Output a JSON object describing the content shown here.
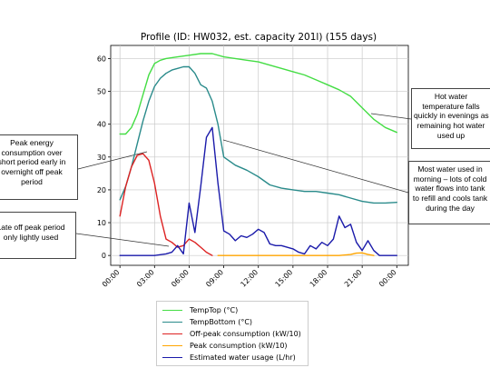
{
  "chart_data": {
    "type": "line",
    "title": "Profile (ID: HW032, est. capacity 201l) (155 days)",
    "xlabel": "",
    "ylabel": "",
    "x_ticks": [
      "00:00",
      "03:00",
      "06:00",
      "09:00",
      "12:00",
      "15:00",
      "18:00",
      "21:00",
      "00:00"
    ],
    "x_tick_hours": [
      0,
      3,
      6,
      9,
      12,
      15,
      18,
      21,
      24
    ],
    "xlim": [
      -0.8,
      25.0
    ],
    "y_ticks": [
      0,
      10,
      20,
      30,
      40,
      50,
      60
    ],
    "ylim": [
      -3,
      64
    ],
    "grid": true,
    "legend_position": "below",
    "series": [
      {
        "name": "TempTop (°C)",
        "color": "#44dd44",
        "x": [
          0,
          0.5,
          1,
          1.5,
          2,
          2.5,
          3,
          3.5,
          4,
          5,
          6,
          7,
          8,
          9,
          10,
          11,
          12,
          13,
          14,
          15,
          16,
          17,
          18,
          19,
          20,
          21,
          22,
          23,
          24
        ],
        "y": [
          37,
          37,
          39,
          43,
          49,
          55,
          58.5,
          59.5,
          60,
          60.5,
          61,
          61.5,
          61.5,
          60.5,
          60,
          59.5,
          59,
          58,
          57,
          56,
          55,
          53.5,
          52,
          50.5,
          48.5,
          45,
          41.5,
          39,
          37.5
        ]
      },
      {
        "name": "TempBottom (°C)",
        "color": "#2a8b8b",
        "x": [
          0,
          0.5,
          1,
          1.5,
          2,
          2.5,
          3,
          3.5,
          4,
          4.5,
          5,
          5.5,
          6,
          6.5,
          7,
          7.5,
          8,
          8.5,
          9,
          10,
          11,
          12,
          13,
          14,
          15,
          16,
          17,
          18,
          19,
          20,
          21,
          22,
          23,
          24
        ],
        "y": [
          17,
          21,
          27,
          34,
          41,
          47,
          51.5,
          54,
          55.5,
          56.5,
          57,
          57.5,
          57.5,
          55.5,
          52,
          51,
          47,
          40,
          30,
          27.5,
          26,
          24,
          21.5,
          20.5,
          20,
          19.5,
          19.5,
          19,
          18.5,
          17.5,
          16.5,
          16,
          16,
          16.2
        ]
      },
      {
        "name": "Off-peak consumption (kW/10)",
        "color": "#dd2222",
        "x": [
          0,
          0.5,
          1,
          1.5,
          2,
          2.5,
          3,
          3.5,
          4,
          4.5,
          5,
          5.5,
          6,
          6.5,
          7,
          7.5,
          8
        ],
        "y": [
          12,
          21,
          27,
          30.5,
          31,
          29,
          22,
          12,
          5,
          4,
          2.5,
          3,
          5,
          4,
          2.5,
          1,
          0
        ]
      },
      {
        "name": "Peak consumption (kW/10)",
        "color": "#ffa500",
        "x": [
          8.5,
          9,
          10,
          11,
          12,
          13,
          14,
          15,
          16,
          17,
          18,
          19,
          20,
          20.5,
          21,
          21.5,
          22
        ],
        "y": [
          0,
          0,
          0,
          0,
          0,
          0,
          0,
          0,
          0,
          0,
          0,
          0,
          0.3,
          0.7,
          0.8,
          0.3,
          0
        ]
      },
      {
        "name": "Estimated water usage (L/hr)",
        "color": "#1a1aaa",
        "x": [
          0,
          1,
          2,
          3,
          4,
          4.5,
          5,
          5.5,
          6,
          6.5,
          7,
          7.5,
          8,
          8.5,
          9,
          9.5,
          10,
          10.5,
          11,
          11.5,
          12,
          12.5,
          13,
          13.5,
          14,
          15,
          15.5,
          16,
          16.5,
          17,
          17.5,
          18,
          18.5,
          19,
          19.5,
          20,
          20.5,
          21,
          21.5,
          22,
          22.5,
          23,
          23.5,
          24
        ],
        "y": [
          0,
          0,
          0,
          0,
          0.5,
          1,
          3,
          0.5,
          16,
          7,
          21,
          36,
          39,
          22,
          7.5,
          6.5,
          4.5,
          6,
          5.5,
          6.5,
          8,
          7,
          3.5,
          3,
          3,
          2,
          1,
          0.5,
          3,
          2,
          4,
          3,
          5,
          12,
          8.5,
          9.5,
          4,
          1.5,
          4.5,
          1.5,
          0,
          0,
          0,
          0
        ]
      }
    ]
  },
  "annotations": [
    {
      "name": "callout-hot-water-falls",
      "lines": [
        "Hot water",
        "temperature falls",
        "quickly  in evenings as",
        "remaining hot  water",
        "used up"
      ]
    },
    {
      "name": "callout-peak-energy",
      "lines": [
        "Peak energy",
        "consumption over",
        "short period early in",
        "overnight off peak",
        "period"
      ]
    },
    {
      "name": "callout-most-water-used",
      "lines": [
        "Most water used in",
        "morning – lots of cold",
        "water flows into tank",
        "to refill and cools tank",
        "during the day"
      ]
    },
    {
      "name": "callout-late-offpeak",
      "lines": [
        "Late off peak period",
        "only lightly used"
      ]
    }
  ]
}
